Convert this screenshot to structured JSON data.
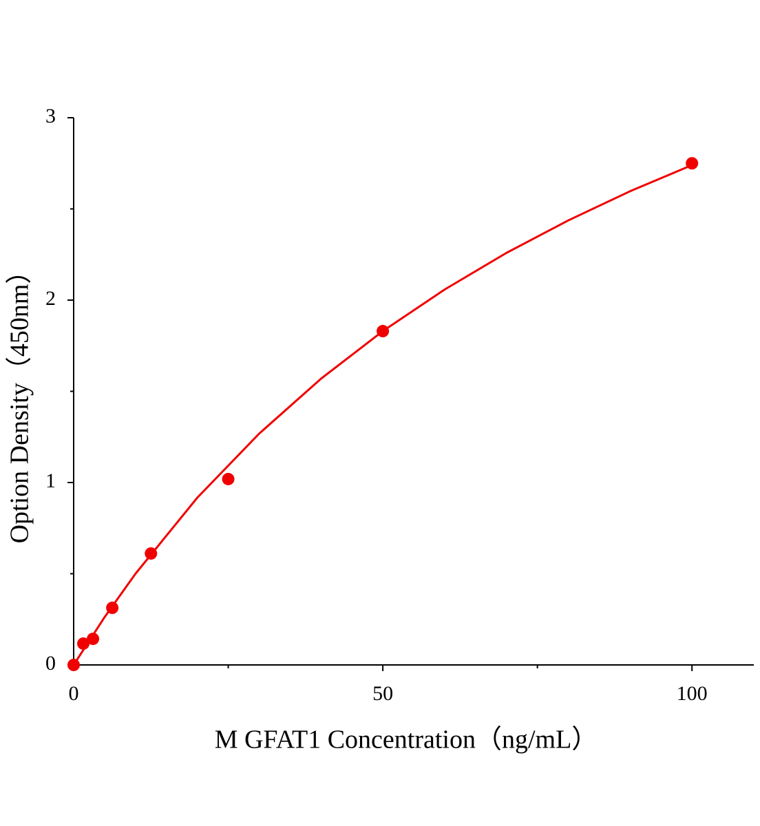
{
  "chart_data": {
    "type": "scatter",
    "x_label": "M GFAT1 Concentration（ng/mL）",
    "y_label": "Option Density（450nm）",
    "xlim": [
      0,
      110
    ],
    "ylim": [
      0,
      3
    ],
    "xticks": [
      0,
      50,
      100
    ],
    "yticks": [
      0,
      1,
      2,
      3
    ],
    "xminorticks": [
      25,
      75
    ],
    "yminorticks": [
      0.5,
      1.5,
      2.5
    ],
    "series": [
      {
        "style": "markers",
        "color": "#f00000",
        "x": [
          0,
          1.5625,
          3.125,
          6.25,
          12.5,
          25,
          50,
          100
        ],
        "values": [
          0,
          0.117,
          0.143,
          0.313,
          0.611,
          1.019,
          1.83,
          2.75
        ]
      },
      {
        "style": "line",
        "color": "#f00000",
        "x": [
          0,
          5,
          10,
          20,
          30,
          40,
          50,
          60,
          70,
          80,
          90,
          100
        ],
        "values": [
          0,
          0.262,
          0.5,
          0.917,
          1.268,
          1.569,
          1.83,
          2.058,
          2.259,
          2.437,
          2.597,
          2.74
        ]
      }
    ]
  }
}
